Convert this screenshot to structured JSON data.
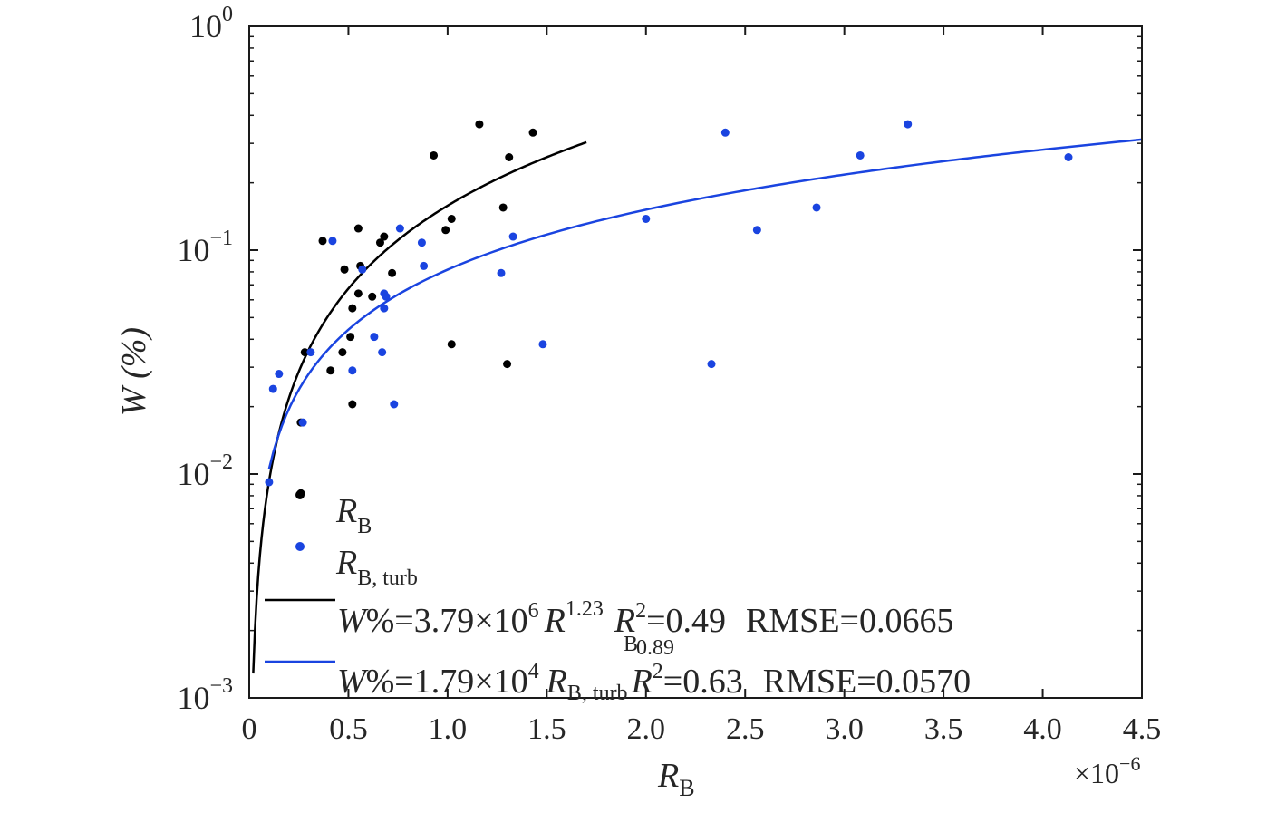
{
  "chart_data": {
    "type": "scatter",
    "xlabel": "R",
    "xlabel_sub": "B",
    "ylabel": "W (%)",
    "x_multiplier_text": "×10",
    "x_multiplier_exp": "−6",
    "xlim": [
      0,
      4.5
    ],
    "ylim": [
      0.001,
      1
    ],
    "y_scale": "log",
    "grid": false,
    "legend_position": "bottom-left",
    "x_ticks": [
      "0",
      "0.5",
      "1.0",
      "1.5",
      "2.0",
      "2.5",
      "3.0",
      "3.5",
      "4.0",
      "4.5"
    ],
    "y_ticks": [
      {
        "value": 0.001,
        "base": "10",
        "exp": "−3"
      },
      {
        "value": 0.01,
        "base": "10",
        "exp": "−2"
      },
      {
        "value": 0.1,
        "base": "10",
        "exp": "−1"
      },
      {
        "value": 1,
        "base": "10",
        "exp": "0"
      }
    ],
    "series": [
      {
        "name": "R_B",
        "legend_main": "R",
        "legend_sub": "B",
        "color": "#000000",
        "marker": "dot",
        "points": [
          [
            0.26,
            0.0082
          ],
          [
            0.26,
            0.017
          ],
          [
            0.28,
            0.035
          ],
          [
            0.37,
            0.11
          ],
          [
            0.41,
            0.029
          ],
          [
            0.47,
            0.035
          ],
          [
            0.48,
            0.082
          ],
          [
            0.51,
            0.041
          ],
          [
            0.52,
            0.055
          ],
          [
            0.52,
            0.0205
          ],
          [
            0.55,
            0.125
          ],
          [
            0.55,
            0.064
          ],
          [
            0.56,
            0.085
          ],
          [
            0.62,
            0.062
          ],
          [
            0.66,
            0.108
          ],
          [
            0.68,
            0.115
          ],
          [
            0.72,
            0.079
          ],
          [
            0.93,
            0.265
          ],
          [
            0.99,
            0.123
          ],
          [
            1.02,
            0.138
          ],
          [
            1.02,
            0.038
          ],
          [
            1.16,
            0.365
          ],
          [
            1.28,
            0.155
          ],
          [
            1.3,
            0.031
          ],
          [
            1.31,
            0.26
          ],
          [
            1.43,
            0.335
          ]
        ]
      },
      {
        "name": "R_B,turb",
        "legend_main": "R",
        "legend_sub": "B, turb",
        "color": "#1a44e0",
        "marker": "dot",
        "points": [
          [
            0.1,
            0.0092
          ],
          [
            0.12,
            0.024
          ],
          [
            0.15,
            0.028
          ],
          [
            0.27,
            0.017
          ],
          [
            0.31,
            0.035
          ],
          [
            0.42,
            0.11
          ],
          [
            0.52,
            0.029
          ],
          [
            0.57,
            0.082
          ],
          [
            0.63,
            0.041
          ],
          [
            0.67,
            0.035
          ],
          [
            0.68,
            0.064
          ],
          [
            0.68,
            0.055
          ],
          [
            0.69,
            0.062
          ],
          [
            0.73,
            0.0205
          ],
          [
            0.76,
            0.125
          ],
          [
            0.87,
            0.108
          ],
          [
            0.88,
            0.085
          ],
          [
            1.27,
            0.079
          ],
          [
            1.33,
            0.115
          ],
          [
            1.48,
            0.038
          ],
          [
            2.0,
            0.138
          ],
          [
            2.33,
            0.031
          ],
          [
            2.4,
            0.335
          ],
          [
            2.56,
            0.123
          ],
          [
            2.86,
            0.155
          ],
          [
            3.08,
            0.265
          ],
          [
            3.32,
            0.365
          ],
          [
            4.13,
            0.26
          ]
        ]
      }
    ],
    "fits": [
      {
        "name": "fit R_B",
        "color": "#000000",
        "coef": 3790000.0,
        "exponent": 1.23,
        "x_range": [
          0.02,
          1.7
        ],
        "label_w": "W",
        "label_eq": "%=3.79×10",
        "label_pow": "6",
        "label_r": "R",
        "label_rsub": "B",
        "label_rexp": "1.23",
        "label_rexp2": "0.89",
        "label_r2": "R",
        "label_r2sup": "2",
        "label_r2val": "=0.49",
        "label_rmse": "RMSE=0.0665"
      },
      {
        "name": "fit R_B,turb",
        "color": "#1a44e0",
        "coef": 17900.0,
        "exponent": 0.89,
        "x_range": [
          0.1,
          4.5
        ],
        "label_w": "W",
        "label_eq": "%=1.79×10",
        "label_pow": "4",
        "label_r": "R",
        "label_rsub": "B, turb",
        "label_r2": "R",
        "label_r2sup": "2",
        "label_r2val": "=0.63",
        "label_rmse": "RMSE=0.0570"
      }
    ]
  }
}
